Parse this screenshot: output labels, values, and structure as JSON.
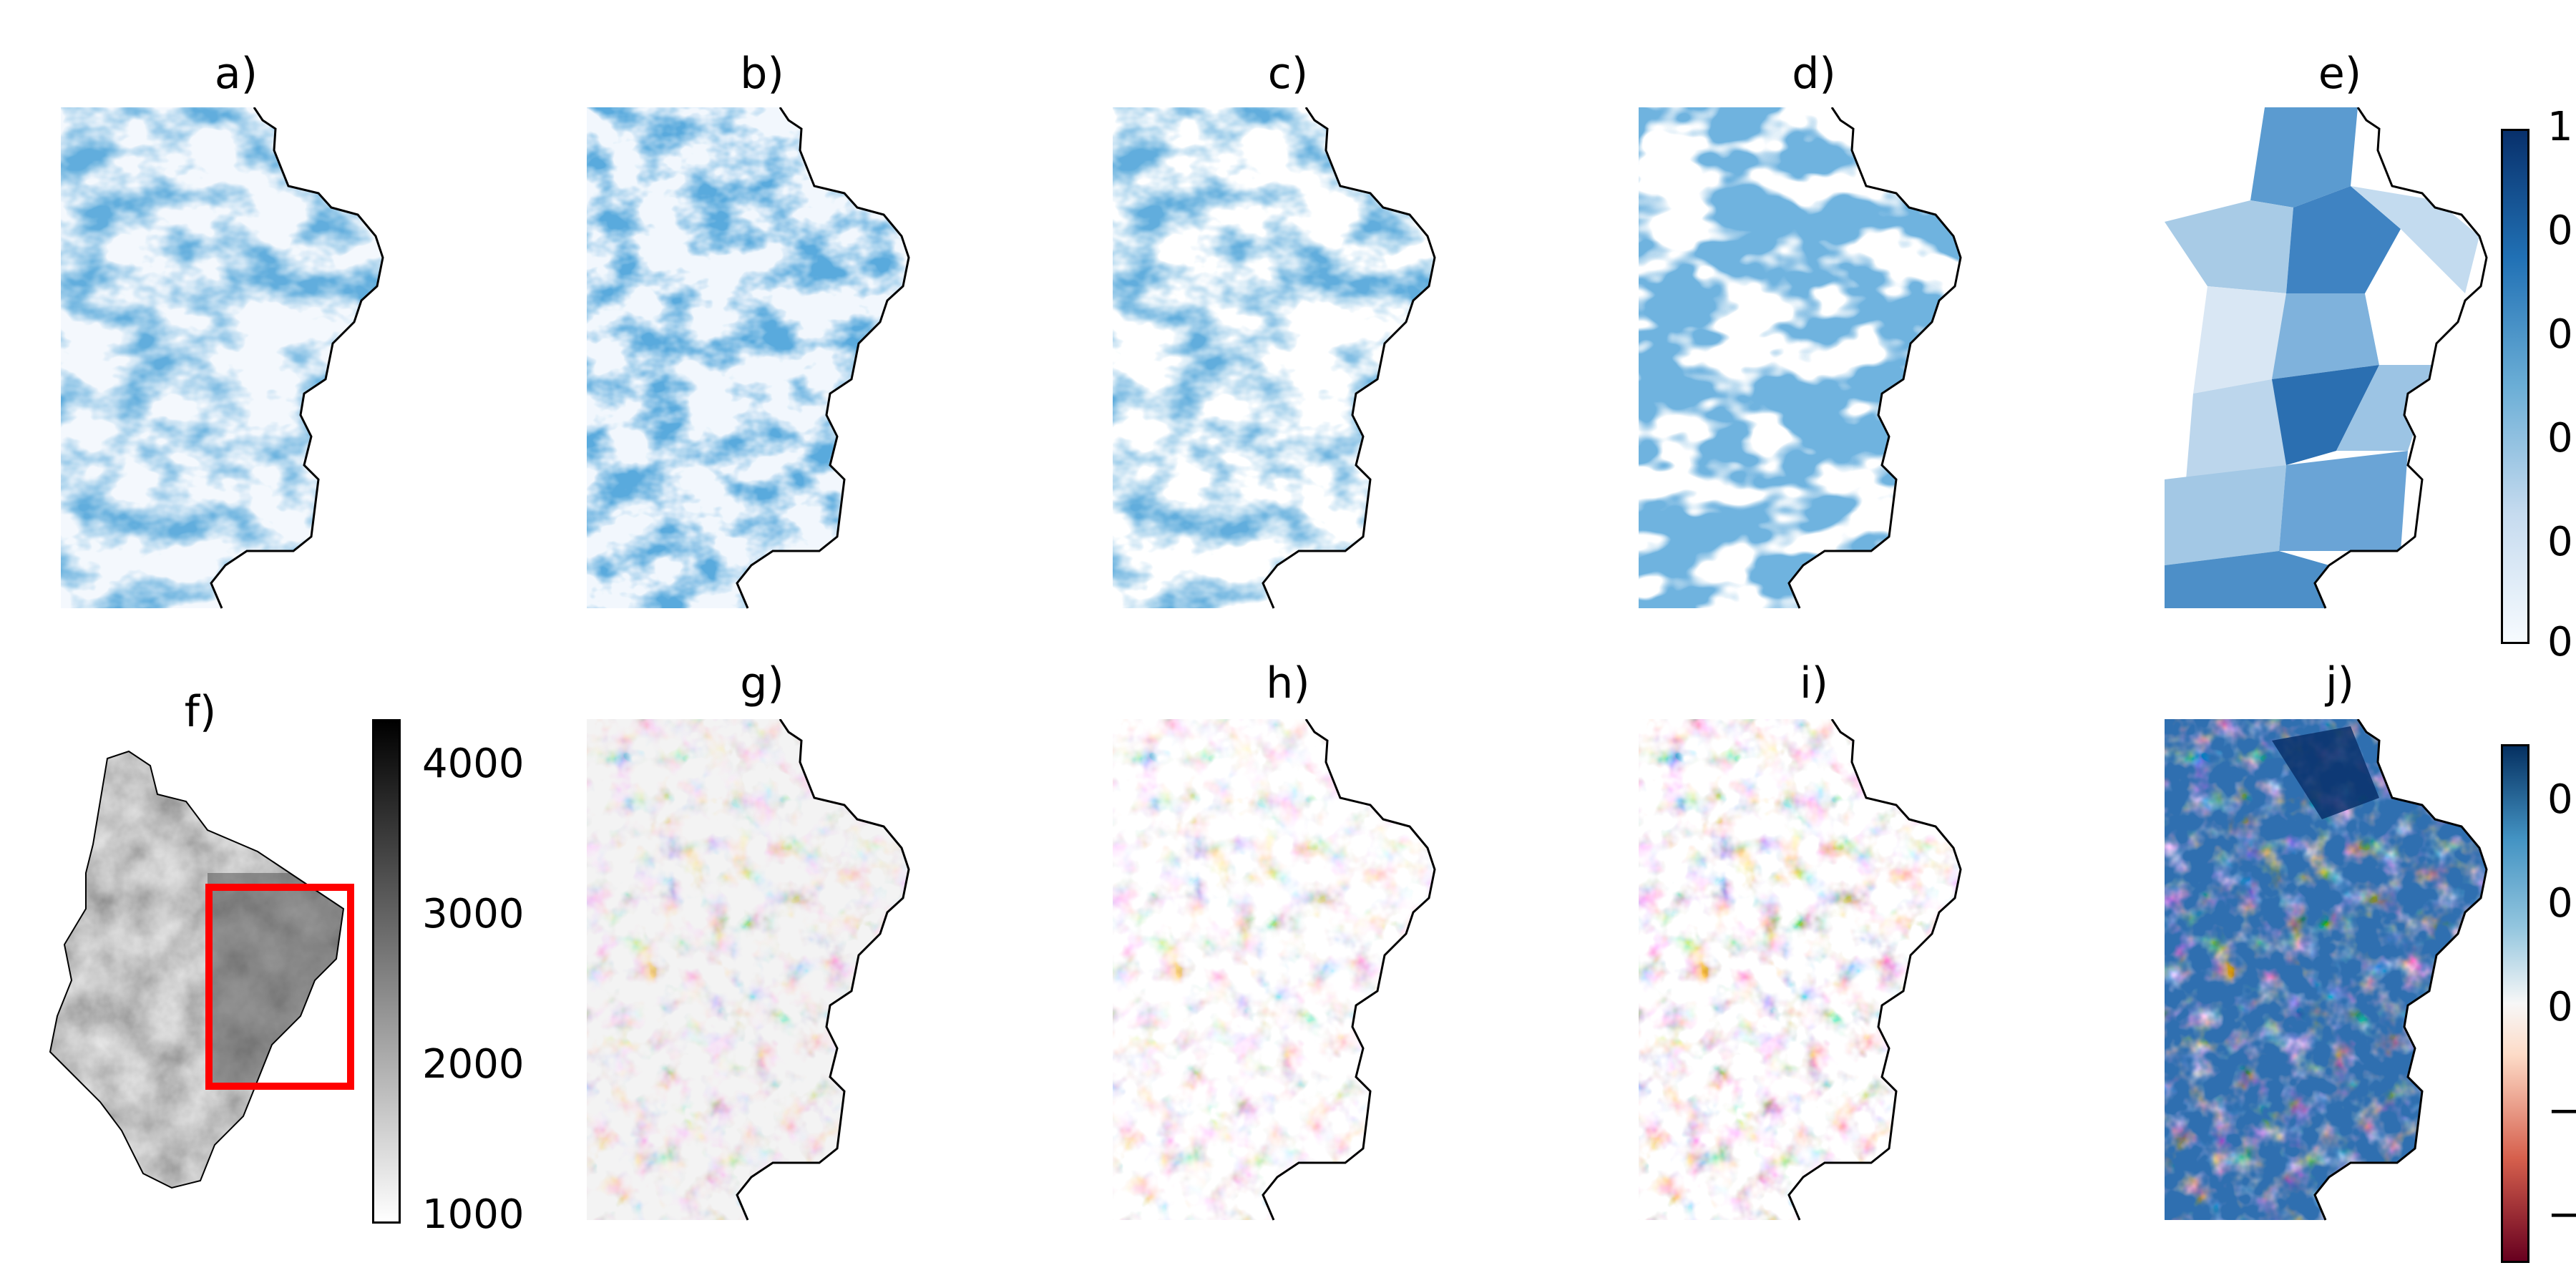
{
  "panels": {
    "a": {
      "label": "a)"
    },
    "b": {
      "label": "b)"
    },
    "c": {
      "label": "c)"
    },
    "d": {
      "label": "d)"
    },
    "e": {
      "label": "e)"
    },
    "f": {
      "label": "f)"
    },
    "g": {
      "label": "g)"
    },
    "h": {
      "label": "h)"
    },
    "i": {
      "label": "i)"
    },
    "j": {
      "label": "j)"
    }
  },
  "colorbars": {
    "top": {
      "ticks": [
        "1",
        "0",
        "0",
        "0",
        "0",
        "0"
      ],
      "colormap": "Blues"
    },
    "elevation": {
      "ticks": [
        "4000",
        "3000",
        "2000",
        "1000"
      ],
      "colormap": "Greys"
    },
    "bottom": {
      "ticks": [
        "0",
        "0",
        "0",
        "−",
        "−"
      ],
      "colormap": "RdBu"
    }
  },
  "colors": {
    "blue_dark": "#08306b",
    "blue_mid": "#2f7bbf",
    "blue_light": "#c6dbef",
    "red_dark": "#67001f",
    "red_mid": "#d6604d",
    "highlight_box": "#ff0000"
  }
}
